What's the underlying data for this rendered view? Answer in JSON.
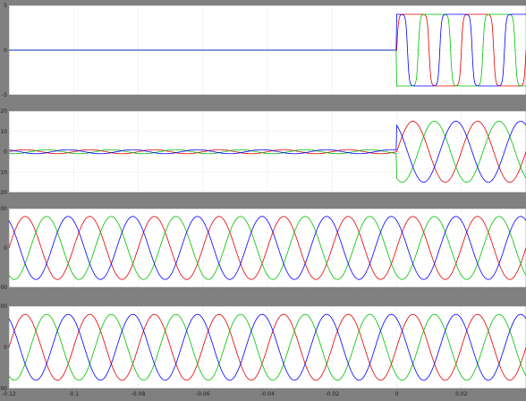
{
  "window": {
    "background": "#808080",
    "axes_background": "#ffffff",
    "grid_color": "#c8c8c8"
  },
  "x_axis": {
    "range": [
      -0.12,
      0.04
    ],
    "ticks": [
      -0.12,
      -0.1,
      -0.08,
      -0.06,
      -0.04,
      -0.02,
      0,
      0.02
    ],
    "tick_labels": [
      "-0.12",
      "-0.1",
      "-0.08",
      "-0.06",
      "-0.04",
      "-0.02",
      "0",
      "0.02"
    ]
  },
  "phase_colors": [
    "#e00000",
    "#00c000",
    "#0000ff"
  ],
  "chart_data": [
    {
      "type": "line",
      "panel": 1,
      "ylim": [
        -5,
        5
      ],
      "yticks": [
        -5,
        0,
        5
      ],
      "ytick_labels": [
        "-5",
        "0",
        "5"
      ],
      "grid": true,
      "description_of_waveform": "near zero before t=0; after t=0 three square-like phase waves of amplitude about 4",
      "series": [
        {
          "color": "#e00000",
          "pre_amplitude": 0,
          "post_amplitude": 4,
          "post_shape": "square",
          "phase_deg": 0
        },
        {
          "color": "#00c000",
          "pre_amplitude": 0,
          "post_amplitude": 4,
          "post_shape": "square",
          "phase_deg": -120
        },
        {
          "color": "#0000ff",
          "pre_amplitude": 0,
          "post_amplitude": 4,
          "post_shape": "square",
          "phase_deg": 120
        }
      ]
    },
    {
      "type": "line",
      "panel": 2,
      "ylim": [
        -20,
        20
      ],
      "yticks": [
        -20,
        -10,
        0,
        10,
        20
      ],
      "ytick_labels": [
        "-20",
        "-10",
        "0",
        "10",
        "20"
      ],
      "grid": true,
      "series": [
        {
          "color": "#e00000",
          "pre_amplitude": 1,
          "post_amplitude": 15,
          "phase_deg": 0
        },
        {
          "color": "#00c000",
          "pre_amplitude": 1,
          "post_amplitude": 15,
          "phase_deg": -120
        },
        {
          "color": "#0000ff",
          "pre_amplitude": 1,
          "post_amplitude": 15,
          "phase_deg": 120
        }
      ]
    },
    {
      "type": "line",
      "panel": 3,
      "ylim": [
        -400,
        400
      ],
      "yticks": [
        -400,
        0,
        400
      ],
      "ytick_labels": [
        "-400",
        "0",
        "400"
      ],
      "grid": true,
      "series": [
        {
          "color": "#e00000",
          "amplitude": 320,
          "phase_deg": 0
        },
        {
          "color": "#00c000",
          "amplitude": 320,
          "phase_deg": -120
        },
        {
          "color": "#0000ff",
          "amplitude": 320,
          "phase_deg": 120
        }
      ]
    },
    {
      "type": "line",
      "panel": 4,
      "ylim": [
        -400,
        400
      ],
      "yticks": [
        -400,
        0,
        400
      ],
      "ytick_labels": [
        "-400",
        "0",
        "400"
      ],
      "grid": true,
      "series": [
        {
          "color": "#e00000",
          "amplitude": 320,
          "phase_deg": 0
        },
        {
          "color": "#00c000",
          "amplitude": 320,
          "phase_deg": -120
        },
        {
          "color": "#0000ff",
          "amplitude": 320,
          "phase_deg": 120
        }
      ]
    }
  ],
  "signal": {
    "frequency_hz": 50
  }
}
